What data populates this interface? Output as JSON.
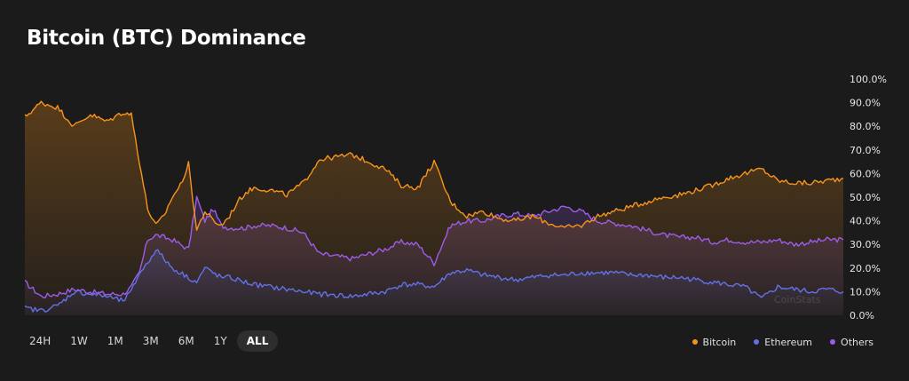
{
  "title": "Bitcoin (BTC) Dominance",
  "watermark": "CoinStats",
  "time_ranges": [
    {
      "label": "24H",
      "active": false
    },
    {
      "label": "1W",
      "active": false
    },
    {
      "label": "1M",
      "active": false
    },
    {
      "label": "3M",
      "active": false
    },
    {
      "label": "6M",
      "active": false
    },
    {
      "label": "1Y",
      "active": false
    },
    {
      "label": "ALL",
      "active": true
    }
  ],
  "colors": {
    "background": "#1b1b1b",
    "bitcoin": "#f7931a",
    "ethereum": "#6272e6",
    "others": "#9d5cea"
  },
  "chart_data": {
    "type": "area",
    "title": "Bitcoin (BTC) Dominance",
    "xlabel": "",
    "ylabel": "",
    "ylim": [
      0,
      100
    ],
    "y_ticks": [
      "0.0%",
      "10.0%",
      "20.0%",
      "30.0%",
      "40.0%",
      "50.0%",
      "60.0%",
      "70.0%",
      "80.0%",
      "90.0%",
      "100.0%"
    ],
    "grid": false,
    "legend_position": "bottom-right",
    "x_ticks": [],
    "x": [
      0,
      2,
      4,
      6,
      8,
      10,
      12,
      13,
      14,
      15,
      16,
      17,
      18,
      19,
      20,
      21,
      22,
      23,
      24,
      25,
      26,
      27,
      28,
      30,
      32,
      34,
      36,
      40,
      44,
      46,
      48,
      50,
      52,
      54,
      56,
      58,
      60,
      62,
      64,
      66,
      68,
      70,
      72,
      74,
      76,
      78,
      80,
      82,
      84,
      86,
      88,
      90,
      92,
      94,
      96,
      98,
      100
    ],
    "series": [
      {
        "name": "Bitcoin",
        "values": [
          84,
          90,
          88,
          80,
          85,
          82,
          86,
          85,
          65,
          45,
          38,
          42,
          50,
          55,
          64,
          36,
          44,
          40,
          38,
          42,
          48,
          52,
          54,
          53,
          51,
          56,
          66,
          68,
          62,
          55,
          54,
          65,
          48,
          42,
          44,
          41,
          40,
          42,
          39,
          37,
          38,
          42,
          44,
          46,
          48,
          50,
          51,
          53,
          55,
          58,
          60,
          62,
          57,
          56,
          56,
          57,
          58
        ]
      },
      {
        "name": "Ethereum",
        "values": [
          3,
          2,
          4,
          10,
          9,
          8,
          6,
          10,
          18,
          22,
          28,
          24,
          20,
          18,
          16,
          14,
          20,
          18,
          16,
          16,
          15,
          14,
          13,
          12,
          11,
          10,
          9,
          8,
          10,
          13,
          13,
          12,
          18,
          19,
          17,
          16,
          15,
          16,
          17,
          17,
          18,
          18,
          18,
          17,
          17,
          16,
          16,
          15,
          14,
          13,
          12,
          7,
          12,
          11,
          10,
          11,
          10
        ]
      },
      {
        "name": "Others",
        "values": [
          14,
          8,
          9,
          11,
          10,
          9,
          9,
          12,
          18,
          32,
          34,
          33,
          32,
          30,
          28,
          50,
          40,
          45,
          38,
          37,
          37,
          37,
          38,
          38,
          37,
          35,
          26,
          24,
          28,
          31,
          30,
          22,
          38,
          40,
          40,
          42,
          43,
          42,
          44,
          46,
          44,
          40,
          39,
          38,
          36,
          34,
          33,
          33,
          31,
          32,
          31,
          31,
          32,
          30,
          31,
          32,
          32
        ]
      }
    ]
  }
}
